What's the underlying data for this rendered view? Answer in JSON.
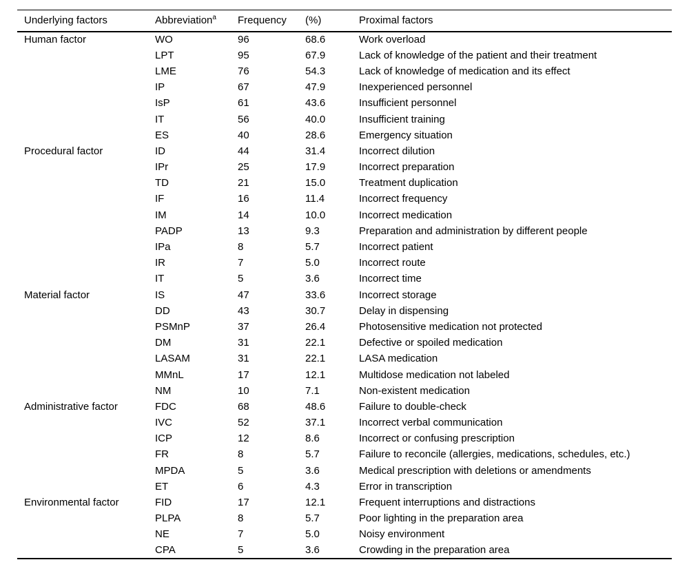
{
  "page": {
    "background_color": "#ffffff",
    "text_color": "#000000",
    "rule_color": "#000000"
  },
  "table": {
    "headers": {
      "underlying": "Underlying factors",
      "abbreviation": "Abbreviation",
      "abbreviation_sup": "a",
      "frequency": "Frequency",
      "percent": "(%)",
      "proximal": "Proximal factors"
    },
    "groups": [
      {
        "factor": "Human factor",
        "rows": [
          {
            "abbr": "WO",
            "freq": "96",
            "pct": "68.6",
            "proximal": "Work overload"
          },
          {
            "abbr": "LPT",
            "freq": "95",
            "pct": "67.9",
            "proximal": "Lack of knowledge of the patient and their treatment"
          },
          {
            "abbr": "LME",
            "freq": "76",
            "pct": "54.3",
            "proximal": "Lack of knowledge of medication and its effect"
          },
          {
            "abbr": "IP",
            "freq": "67",
            "pct": "47.9",
            "proximal": "Inexperienced personnel"
          },
          {
            "abbr": "IsP",
            "freq": "61",
            "pct": "43.6",
            "proximal": "Insufficient personnel"
          },
          {
            "abbr": "IT",
            "freq": "56",
            "pct": "40.0",
            "proximal": "Insufficient training"
          },
          {
            "abbr": "ES",
            "freq": "40",
            "pct": "28.6",
            "proximal": "Emergency situation"
          }
        ]
      },
      {
        "factor": "Procedural factor",
        "rows": [
          {
            "abbr": "ID",
            "freq": "44",
            "pct": "31.4",
            "proximal": "Incorrect dilution"
          },
          {
            "abbr": "IPr",
            "freq": "25",
            "pct": "17.9",
            "proximal": "Incorrect preparation"
          },
          {
            "abbr": "TD",
            "freq": "21",
            "pct": "15.0",
            "proximal": "Treatment duplication"
          },
          {
            "abbr": "IF",
            "freq": "16",
            "pct": "11.4",
            "proximal": "Incorrect frequency"
          },
          {
            "abbr": "IM",
            "freq": "14",
            "pct": "10.0",
            "proximal": "Incorrect medication"
          },
          {
            "abbr": "PADP",
            "freq": "13",
            "pct": "9.3",
            "proximal": "Preparation and administration by different people"
          },
          {
            "abbr": "IPa",
            "freq": "8",
            "pct": "5.7",
            "proximal": "Incorrect patient"
          },
          {
            "abbr": "IR",
            "freq": "7",
            "pct": "5.0",
            "proximal": "Incorrect route"
          },
          {
            "abbr": "IT",
            "freq": "5",
            "pct": "3.6",
            "proximal": "Incorrect time"
          }
        ]
      },
      {
        "factor": "Material factor",
        "rows": [
          {
            "abbr": "IS",
            "freq": "47",
            "pct": "33.6",
            "proximal": "Incorrect storage"
          },
          {
            "abbr": "DD",
            "freq": "43",
            "pct": "30.7",
            "proximal": "Delay in dispensing"
          },
          {
            "abbr": "PSMnP",
            "freq": "37",
            "pct": "26.4",
            "proximal": "Photosensitive medication not protected"
          },
          {
            "abbr": "DM",
            "freq": "31",
            "pct": "22.1",
            "proximal": "Defective or spoiled medication"
          },
          {
            "abbr": "LASAM",
            "freq": "31",
            "pct": "22.1",
            "proximal": "LASA medication"
          },
          {
            "abbr": "MMnL",
            "freq": "17",
            "pct": "12.1",
            "proximal": "Multidose medication not labeled"
          },
          {
            "abbr": "NM",
            "freq": "10",
            "pct": "7.1",
            "proximal": "Non-existent medication"
          }
        ]
      },
      {
        "factor": "Administrative factor",
        "rows": [
          {
            "abbr": "FDC",
            "freq": "68",
            "pct": "48.6",
            "proximal": "Failure to double-check"
          },
          {
            "abbr": "IVC",
            "freq": "52",
            "pct": "37.1",
            "proximal": "Incorrect verbal communication"
          },
          {
            "abbr": "ICP",
            "freq": "12",
            "pct": "8.6",
            "proximal": "Incorrect or confusing prescription"
          },
          {
            "abbr": "FR",
            "freq": "8",
            "pct": "5.7",
            "proximal": "Failure to reconcile (allergies, medications, schedules, etc.)"
          },
          {
            "abbr": "MPDA",
            "freq": "5",
            "pct": "3.6",
            "proximal": "Medical prescription with deletions or amendments"
          },
          {
            "abbr": "ET",
            "freq": "6",
            "pct": "4.3",
            "proximal": "Error in transcription"
          }
        ]
      },
      {
        "factor": "Environmental factor",
        "rows": [
          {
            "abbr": "FID",
            "freq": "17",
            "pct": "12.1",
            "proximal": "Frequent interruptions and distractions"
          },
          {
            "abbr": "PLPA",
            "freq": "8",
            "pct": "5.7",
            "proximal": "Poor lighting in the preparation area"
          },
          {
            "abbr": "NE",
            "freq": "7",
            "pct": "5.0",
            "proximal": "Noisy environment"
          },
          {
            "abbr": "CPA",
            "freq": "5",
            "pct": "3.6",
            "proximal": "Crowding in the preparation area"
          }
        ]
      }
    ]
  }
}
